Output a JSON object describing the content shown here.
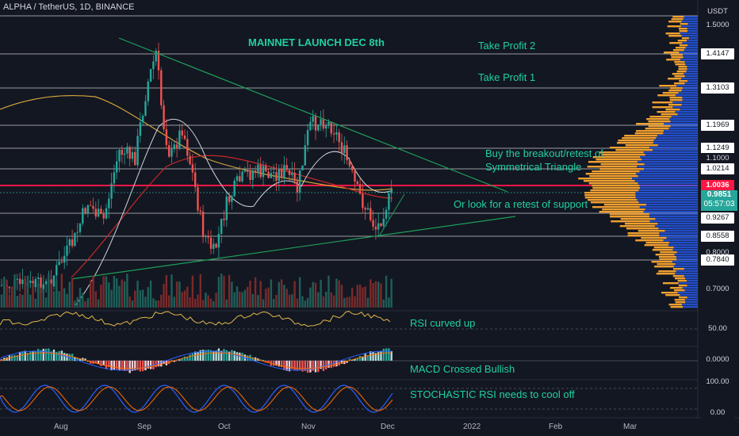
{
  "symbol_header": "ALPHA / TetherUS, 1D, BINANCE",
  "currency_label": "USDT",
  "annotations": {
    "mainnet": "MAINNET LAUNCH DEC 8th",
    "tp2": "Take Profit 2",
    "tp1": "Take Profit 1",
    "breakout_line1": "Buy the breakout/retest of",
    "breakout_line2": "Symmetrical Triangle",
    "retest": "Or look for a retest of support",
    "rsi": "RSI curved up",
    "macd": "MACD Crossed Bullish",
    "stoch": "STOCHASTIC RSI needs to cool off"
  },
  "price_levels": [
    {
      "label": "1.5000",
      "boxed": false
    },
    {
      "label": "1.4147",
      "boxed": true
    },
    {
      "label": "1.3103",
      "boxed": true
    },
    {
      "label": "1.1969",
      "boxed": true
    },
    {
      "label": "1.1249",
      "boxed": true
    },
    {
      "label": "1.1000",
      "boxed": false
    },
    {
      "label": "1.0214",
      "boxed": true
    },
    {
      "label": "0.9267",
      "boxed": true
    },
    {
      "label": "0.8558",
      "boxed": true
    },
    {
      "label": "0.8000",
      "boxed": false
    },
    {
      "label": "0.7840",
      "boxed": true
    },
    {
      "label": "0.7000",
      "boxed": false
    }
  ],
  "resistance_label": "1.0036",
  "current_price": "0.9851",
  "countdown": "05:57:03",
  "indicator_axis": {
    "rsi_level": "50.00",
    "macd_zero": "0.0000",
    "stoch_top": "100.00",
    "stoch_bottom": "0.00"
  },
  "x_axis": [
    "Aug",
    "Sep",
    "Oct",
    "Nov",
    "Dec",
    "2022",
    "Feb",
    "Mar"
  ],
  "colors": {
    "up": "#26a69a",
    "down": "#ef5350",
    "resistance": "#ff1744",
    "triangle": "#1e9e5a",
    "volume_profile_up": "#2962ff",
    "volume_profile_down": "#f0a030",
    "annotation": "#20d0a0"
  }
}
